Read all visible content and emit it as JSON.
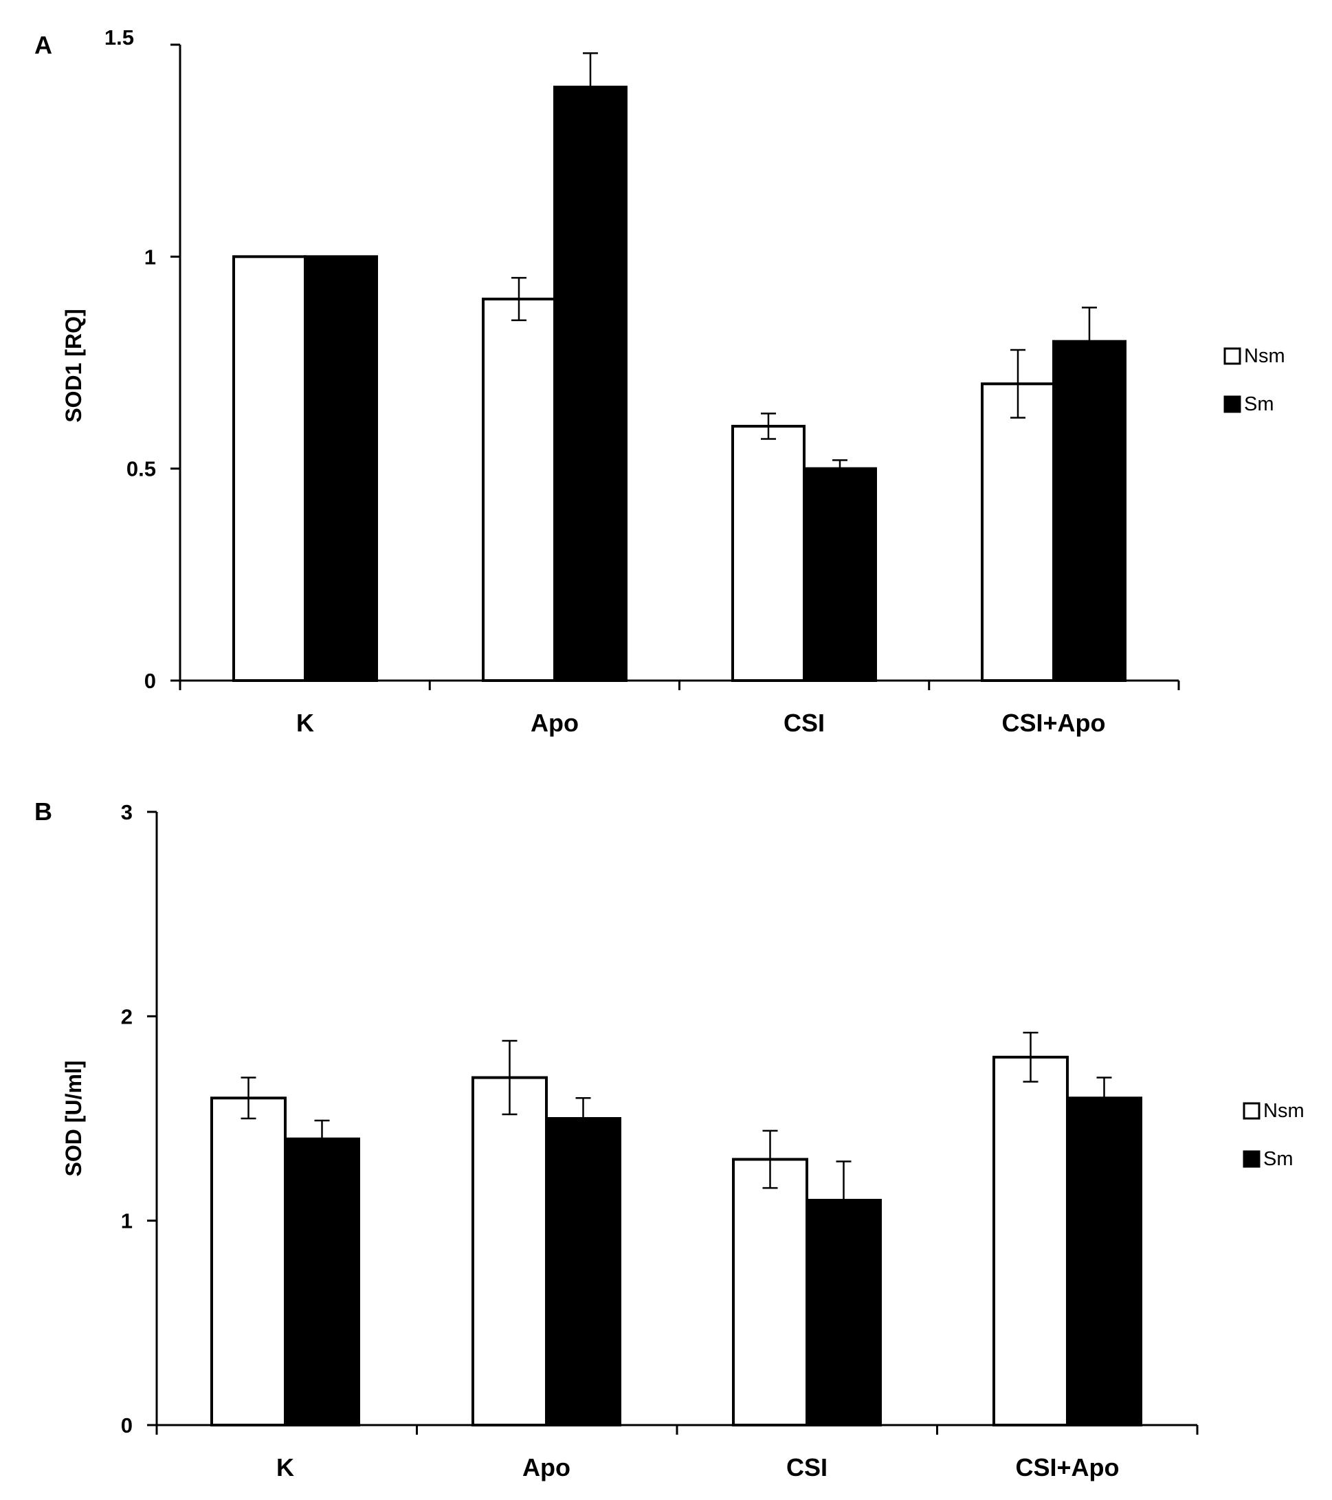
{
  "chart_data": [
    {
      "panel": "A",
      "type": "bar",
      "title": "",
      "xlabel": "",
      "ylabel": "SOD1 [RQ]",
      "ylim": [
        0,
        1.5
      ],
      "yticks": [
        0,
        0.5,
        1,
        1.5
      ],
      "ytick_labels": [
        "0",
        "0.5",
        "1",
        "1.5"
      ],
      "categories": [
        "K",
        "Apo",
        "CSI",
        "CSI+Apo"
      ],
      "series": [
        {
          "name": "Nsm",
          "fill": "#ffffff",
          "values": [
            1.0,
            0.9,
            0.6,
            0.7
          ],
          "errors": [
            0.0,
            0.05,
            0.03,
            0.08
          ]
        },
        {
          "name": "Sm",
          "fill": "#000000",
          "values": [
            1.0,
            1.4,
            0.5,
            0.8
          ],
          "errors": [
            0.0,
            0.08,
            0.02,
            0.08
          ]
        }
      ],
      "legend_position": "right"
    },
    {
      "panel": "B",
      "type": "bar",
      "title": "",
      "xlabel": "",
      "ylabel": "SOD [U/ml]",
      "ylim": [
        0,
        3
      ],
      "yticks": [
        0,
        1,
        2,
        3
      ],
      "ytick_labels": [
        "0",
        "1",
        "2",
        "3"
      ],
      "categories": [
        "K",
        "Apo",
        "CSI",
        "CSI+Apo"
      ],
      "series": [
        {
          "name": "Nsm",
          "fill": "#ffffff",
          "values": [
            1.6,
            1.7,
            1.3,
            1.8
          ],
          "errors": [
            0.1,
            0.18,
            0.14,
            0.12
          ]
        },
        {
          "name": "Sm",
          "fill": "#000000",
          "values": [
            1.4,
            1.5,
            1.1,
            1.6
          ],
          "errors": [
            0.09,
            0.1,
            0.19,
            0.1
          ]
        }
      ],
      "legend_position": "right"
    }
  ]
}
